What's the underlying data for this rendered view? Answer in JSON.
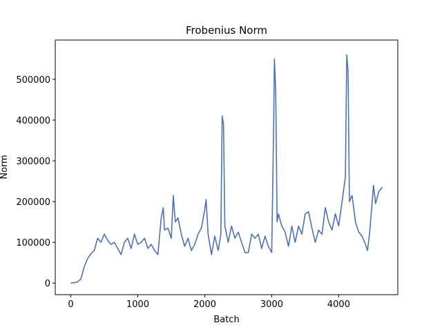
{
  "chart_data": {
    "type": "line",
    "title": "Frobenius Norm",
    "x_label": "Batch",
    "y_label": "Norm",
    "x": [
      0,
      50,
      100,
      150,
      200,
      250,
      300,
      350,
      400,
      450,
      500,
      550,
      600,
      650,
      700,
      750,
      800,
      850,
      900,
      950,
      1000,
      1050,
      1100,
      1150,
      1200,
      1250,
      1300,
      1350,
      1380,
      1400,
      1450,
      1500,
      1530,
      1560,
      1600,
      1650,
      1700,
      1750,
      1800,
      1850,
      1900,
      1950,
      2000,
      2020,
      2050,
      2100,
      2150,
      2200,
      2240,
      2260,
      2280,
      2300,
      2350,
      2400,
      2450,
      2500,
      2550,
      2600,
      2650,
      2700,
      2750,
      2800,
      2850,
      2900,
      2950,
      3000,
      3030,
      3040,
      3060,
      3080,
      3100,
      3150,
      3200,
      3250,
      3300,
      3350,
      3400,
      3450,
      3500,
      3550,
      3600,
      3650,
      3700,
      3750,
      3800,
      3850,
      3900,
      3950,
      4000,
      4050,
      4100,
      4120,
      4140,
      4160,
      4200,
      4250,
      4300,
      4350,
      4400,
      4430,
      4460,
      4500,
      4520,
      4550,
      4600,
      4650
    ],
    "series": [
      {
        "color": "#4c72b0",
        "values": [
          0,
          1000,
          3000,
          10000,
          40000,
          60000,
          72000,
          80000,
          110000,
          100000,
          120000,
          105000,
          95000,
          100000,
          85000,
          70000,
          100000,
          110000,
          85000,
          120000,
          95000,
          100000,
          110000,
          85000,
          95000,
          80000,
          70000,
          160000,
          185000,
          130000,
          135000,
          110000,
          215000,
          150000,
          160000,
          120000,
          90000,
          110000,
          80000,
          95000,
          120000,
          135000,
          180000,
          205000,
          120000,
          70000,
          115000,
          80000,
          120000,
          410000,
          390000,
          140000,
          100000,
          140000,
          110000,
          125000,
          100000,
          75000,
          75000,
          120000,
          110000,
          120000,
          85000,
          115000,
          90000,
          75000,
          400000,
          550000,
          470000,
          150000,
          170000,
          140000,
          125000,
          90000,
          140000,
          100000,
          140000,
          120000,
          170000,
          175000,
          135000,
          100000,
          130000,
          120000,
          185000,
          150000,
          130000,
          170000,
          140000,
          200000,
          260000,
          560000,
          520000,
          200000,
          215000,
          150000,
          125000,
          115000,
          95000,
          80000,
          120000,
          200000,
          240000,
          195000,
          225000,
          235000
        ]
      }
    ],
    "xlim": [
      -232.5,
      4882.5
    ],
    "xticks": [
      0,
      1000,
      2000,
      3000,
      4000
    ],
    "ylim": [
      -28400,
      596400
    ],
    "yticks": [
      0,
      100000,
      200000,
      300000,
      400000,
      500000
    ]
  }
}
